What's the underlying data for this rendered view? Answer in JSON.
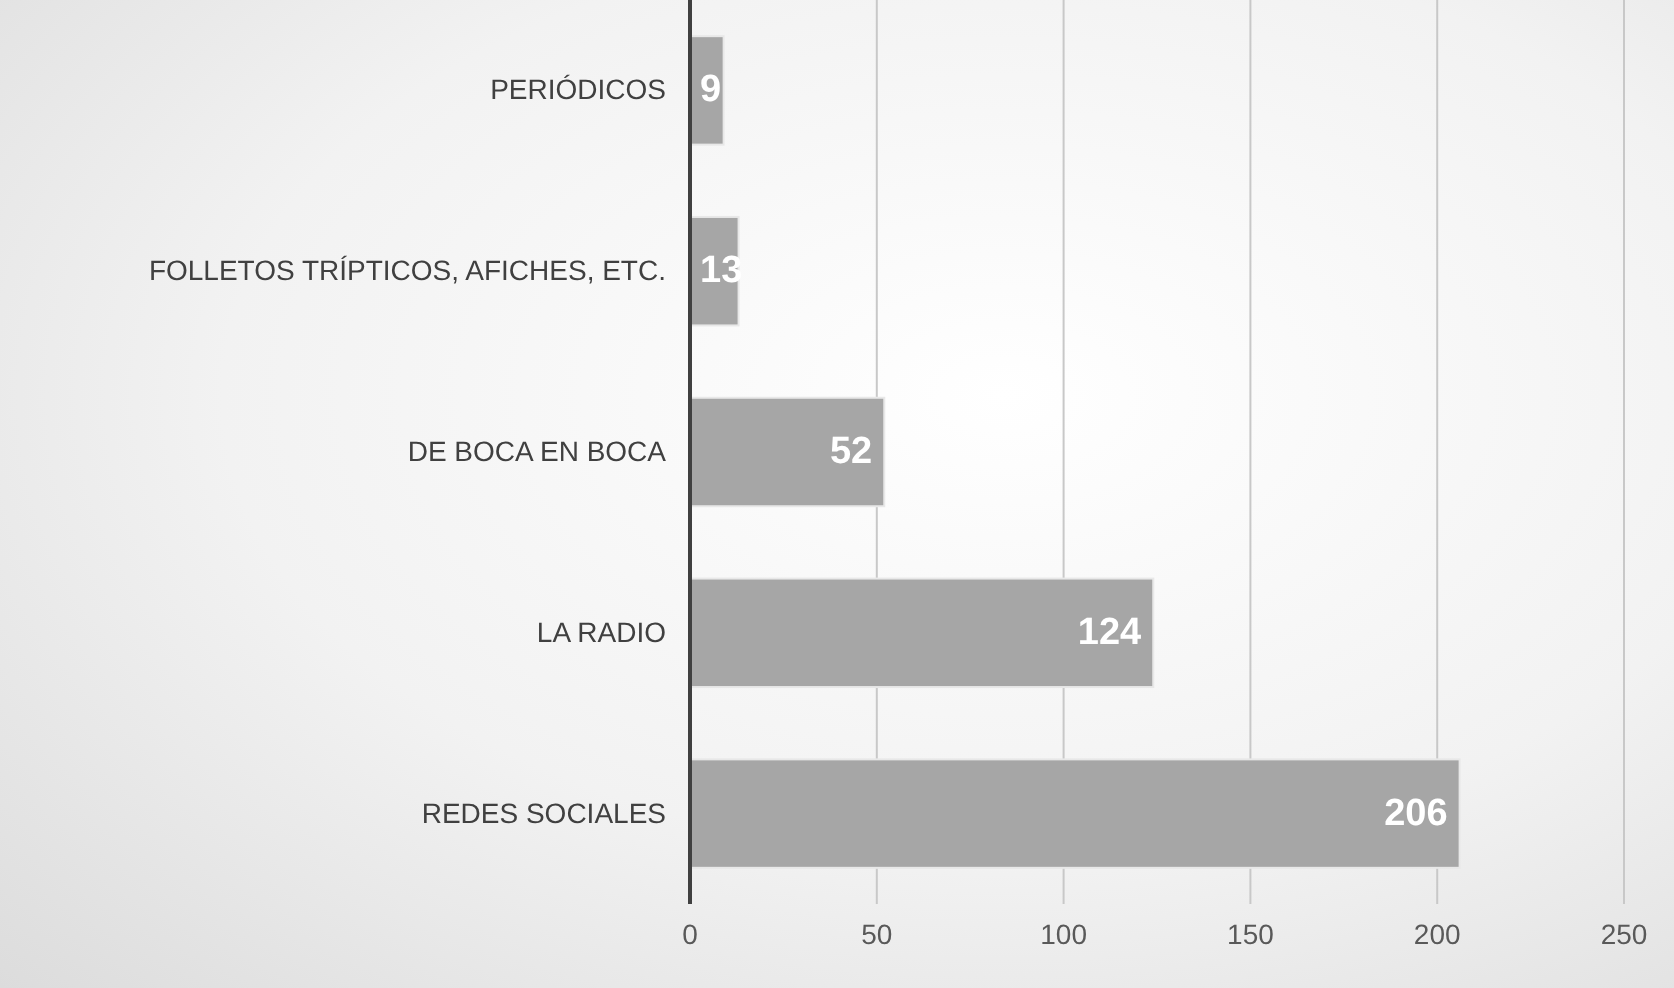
{
  "chart_data": {
    "type": "bar",
    "orientation": "horizontal",
    "categories": [
      "PERIÓDICOS",
      "FOLLETOS TRÍPTICOS, AFICHES, ETC.",
      "DE BOCA EN BOCA",
      "LA RADIO",
      "REDES SOCIALES"
    ],
    "values": [
      9,
      13,
      52,
      124,
      206
    ],
    "color": "#a6a6a6",
    "xlim": [
      0,
      250
    ],
    "xticks": [
      0,
      50,
      100,
      150,
      200,
      250
    ],
    "grid": "x",
    "data_labels": true
  }
}
